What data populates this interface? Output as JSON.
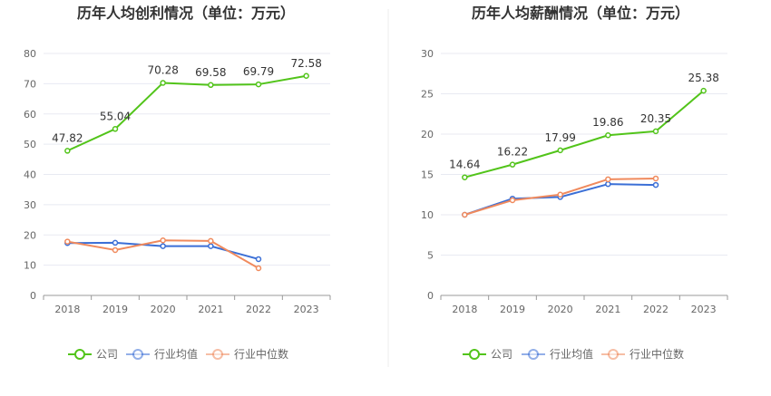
{
  "colors": {
    "company": "#52c41a",
    "industry_avg": "#3b6fd6",
    "industry_median": "#f08a5d",
    "axis": "#999999",
    "grid": "#e8eaf2",
    "divider": "#eeeeee"
  },
  "legend": {
    "company": "公司",
    "industry_avg": "行业均值",
    "industry_median": "行业中位数"
  },
  "chart_data": [
    {
      "type": "line",
      "title": "历年人均创利情况（单位：万元）",
      "x": [
        "2018",
        "2019",
        "2020",
        "2021",
        "2022",
        "2023"
      ],
      "ylim": [
        0,
        80
      ],
      "yticks": [
        0,
        10,
        20,
        30,
        40,
        50,
        60,
        70,
        80
      ],
      "grid": true,
      "legend_position": "bottom",
      "series": [
        {
          "name": "公司",
          "key": "company",
          "values": [
            47.82,
            55.04,
            70.28,
            69.58,
            69.79,
            72.58
          ],
          "labels": [
            "47.82",
            "55.04",
            "70.28",
            "69.58",
            "69.79",
            "72.58"
          ]
        },
        {
          "name": "行业均值",
          "key": "industry_avg",
          "values": [
            17.3,
            17.4,
            16.3,
            16.3,
            12.0,
            null
          ]
        },
        {
          "name": "行业中位数",
          "key": "industry_median",
          "values": [
            17.8,
            15.0,
            18.2,
            18.0,
            9.0,
            null
          ]
        }
      ]
    },
    {
      "type": "line",
      "title": "历年人均薪酬情况（单位：万元）",
      "x": [
        "2018",
        "2019",
        "2020",
        "2021",
        "2022",
        "2023"
      ],
      "ylim": [
        0,
        30
      ],
      "yticks": [
        0,
        5,
        10,
        15,
        20,
        25,
        30
      ],
      "grid": true,
      "legend_position": "bottom",
      "series": [
        {
          "name": "公司",
          "key": "company",
          "values": [
            14.64,
            16.22,
            17.99,
            19.86,
            20.35,
            25.38
          ],
          "labels": [
            "14.64",
            "16.22",
            "17.99",
            "19.86",
            "20.35",
            "25.38"
          ]
        },
        {
          "name": "行业均值",
          "key": "industry_avg",
          "values": [
            10.0,
            12.0,
            12.2,
            13.8,
            13.7,
            null
          ]
        },
        {
          "name": "行业中位数",
          "key": "industry_median",
          "values": [
            10.0,
            11.8,
            12.5,
            14.4,
            14.5,
            null
          ]
        }
      ]
    }
  ]
}
